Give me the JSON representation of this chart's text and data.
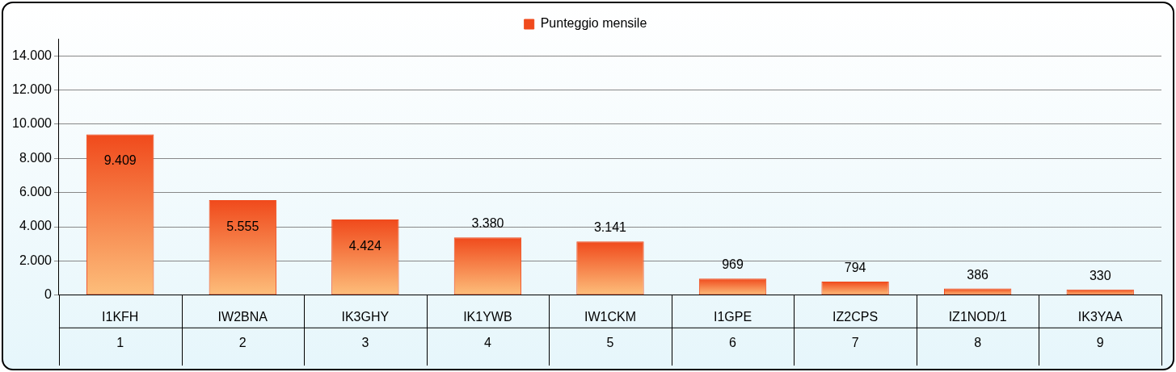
{
  "chart_data": {
    "type": "bar",
    "categories": [
      "I1KFH",
      "IW2BNA",
      "IK3GHY",
      "IK1YWB",
      "IW1CKM",
      "I1GPE",
      "IZ2CPS",
      "IZ1NOD/1",
      "IK3YAA"
    ],
    "series": [
      {
        "name": "Punteggio mensile",
        "color": "#f04a1c",
        "values": [
          9409,
          5555,
          4424,
          3380,
          3141,
          969,
          794,
          386,
          330
        ],
        "value_labels": [
          "9.409",
          "5.555",
          "4.424",
          "3.380",
          "3.141",
          "969",
          "794",
          "386",
          "330"
        ]
      }
    ],
    "annotations": [
      "1",
      "2",
      "3",
      "4",
      "5",
      "6",
      "7",
      "8",
      "9"
    ],
    "ylim": [
      0,
      15000
    ],
    "yticks": [
      0,
      {
        "value": 2000,
        "label": "2.000"
      },
      {
        "value": 4000,
        "label": "4.000"
      },
      {
        "value": 6000,
        "label": "6.000"
      },
      {
        "value": 8000,
        "label": "8.000"
      },
      {
        "value": 10000,
        "label": "10.000"
      },
      {
        "value": 12000,
        "label": "12.000"
      },
      {
        "value": 14000,
        "label": "14.000"
      }
    ],
    "grid": "y",
    "legend": "top"
  }
}
